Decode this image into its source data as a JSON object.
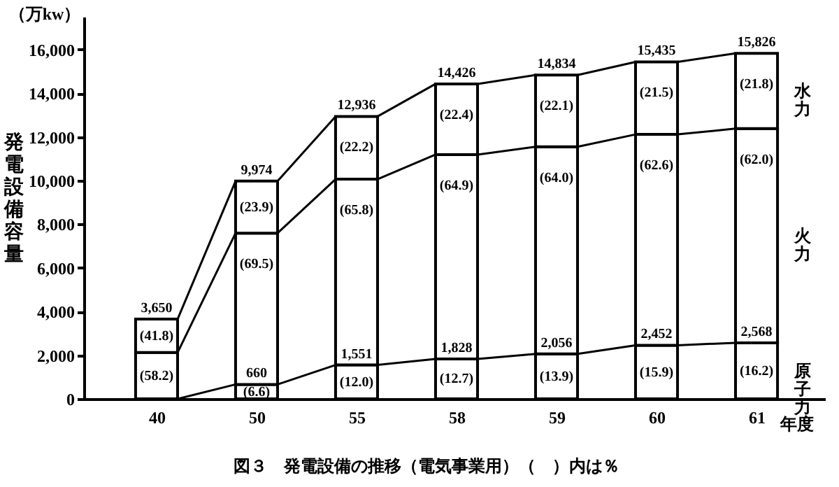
{
  "chart_data": {
    "type": "bar",
    "stacked": true,
    "title": "図３　発電設備の推移（電気事業用）（　）内は％",
    "ylabel": "発電設備容量",
    "xlabel": "年度",
    "categories": [
      "40",
      "50",
      "55",
      "58",
      "59",
      "60",
      "61"
    ],
    "series": [
      {
        "name": "原子力",
        "color": "#ffffff",
        "values": [
          0,
          660,
          1551,
          1828,
          2056,
          2452,
          2568
        ],
        "value_labels": [
          null,
          "660",
          "1,551",
          "1,828",
          "2,056",
          "2,452",
          "2,568"
        ]
      },
      {
        "name": "火力",
        "color": "#ffffff",
        "values": [
          2120,
          6930,
          8510,
          9360,
          9490,
          9660,
          9810
        ]
      },
      {
        "name": "水力",
        "color": "#ffffff",
        "values": [
          1530,
          2384,
          2875,
          3238,
          3288,
          3323,
          3448
        ]
      }
    ],
    "totals": [
      "3,650",
      "9,974",
      "12,936",
      "14,426",
      "14,834",
      "15,435",
      "15,826"
    ],
    "annotations": [
      "（万kw）",
      {
        "text": "(6.6)",
        "x": "50",
        "y": 660
      },
      {
        "text": "(12.0)",
        "x": "55",
        "y": 1551
      },
      {
        "text": "(12.7)",
        "x": "58",
        "y": 1828
      },
      {
        "text": "(13.9)",
        "x": "59",
        "y": 2056
      },
      {
        "text": "(15.9)",
        "x": "60",
        "y": 2452
      },
      {
        "text": "(16.2)",
        "x": "61",
        "y": 2568
      },
      {
        "text": "(58.2)",
        "x": "40",
        "y": 2120
      },
      {
        "text": "(69.5)",
        "x": "50",
        "y": 7590
      },
      {
        "text": "(65.8)",
        "x": "55",
        "y": 10061
      },
      {
        "text": "(64.9)",
        "x": "58",
        "y": 11188
      },
      {
        "text": "(64.0)",
        "x": "59",
        "y": 11546
      },
      {
        "text": "(62.6)",
        "x": "60",
        "y": 12112
      },
      {
        "text": "(62.0)",
        "x": "61",
        "y": 12378
      },
      {
        "text": "(41.8)",
        "x": "40",
        "y": 3650
      },
      {
        "text": "(23.9)",
        "x": "50",
        "y": 9974
      },
      {
        "text": "(22.2)",
        "x": "55",
        "y": 12936
      },
      {
        "text": "(22.4)",
        "x": "58",
        "y": 14426
      },
      {
        "text": "(22.1)",
        "x": "59",
        "y": 14834
      },
      {
        "text": "(21.5)",
        "x": "60",
        "y": 15435
      },
      {
        "text": "(21.8)",
        "x": "61",
        "y": 15826
      }
    ],
    "ylim": [
      0,
      17500
    ],
    "yticks": [
      0,
      {
        "value": 2000,
        "label": "2,000"
      },
      {
        "value": 4000,
        "label": "4,000"
      },
      {
        "value": 6000,
        "label": "6,000"
      },
      {
        "value": 8000,
        "label": "8,000"
      },
      {
        "value": 10000,
        "label": "10,000"
      },
      {
        "value": 12000,
        "label": "12,000"
      },
      {
        "value": 14000,
        "label": "14,000"
      },
      {
        "value": 16000,
        "label": "16,000"
      }
    ],
    "grid": false
  }
}
